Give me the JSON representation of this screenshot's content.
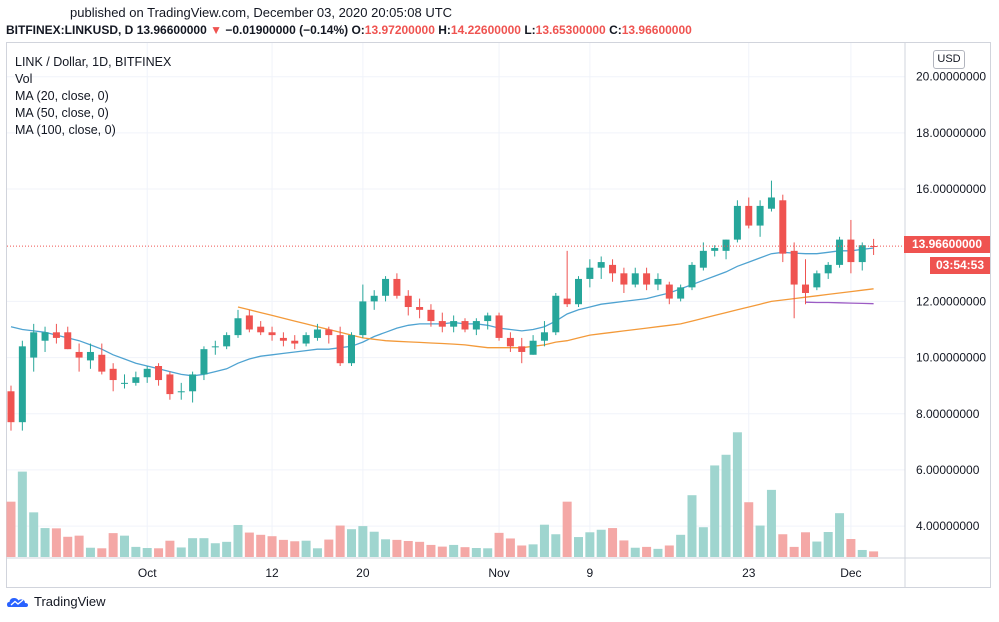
{
  "header": {
    "published": "published on TradingView.com, December 03, 2020 20:05:08 UTC",
    "symbol": "BITFINEX:LINKUSD, D",
    "last": "13.96600000",
    "change_arrow": "▼",
    "change": "−0.01900000 (−0.14%)",
    "o_label": "O:",
    "o_value": "13.97200000",
    "h_label": "H:",
    "h_value": "14.22600000",
    "l_label": "L:",
    "l_value": "13.65300000",
    "c_label": "C:",
    "c_value": "13.96600000"
  },
  "legend": {
    "title": "LINK / Dollar, 1D, BITFINEX",
    "vol": "Vol",
    "ma20": "MA (20, close, 0)",
    "ma50": "MA (50, close, 0)",
    "ma100": "MA (100, close, 0)"
  },
  "currency_button": "USD",
  "price_tag": "13.96600000",
  "countdown_tag": "03:54:53",
  "footer": {
    "brand": "TradingView"
  },
  "colors": {
    "up": "#26a69a",
    "down": "#ef5350",
    "vol_up": "#9fd5cf",
    "vol_down": "#f4a8a6",
    "ma20": "#4fa3d1",
    "ma50": "#f39a3a",
    "ma100": "#9c5cc4",
    "grid": "#f0f3fa"
  },
  "chart_data": {
    "type": "candlestick",
    "title": "LINK / Dollar, 1D, BITFINEX",
    "y_axis": {
      "ticks": [
        "20.00000000",
        "18.00000000",
        "16.00000000",
        "12.00000000",
        "10.00000000",
        "8.00000000",
        "6.00000000",
        "4.00000000"
      ],
      "tick_values": [
        20,
        18,
        16,
        12,
        10,
        8,
        6,
        4
      ],
      "range": [
        2.9,
        21.2
      ]
    },
    "x_axis": {
      "ticks": [
        "Oct",
        "12",
        "20",
        "Nov",
        "9",
        "23",
        "Dec"
      ],
      "tick_day_index": [
        12,
        23,
        31,
        43,
        51,
        65,
        74
      ]
    },
    "candles": [
      {
        "o": 8.8,
        "h": 9.0,
        "l": 7.4,
        "c": 7.7
      },
      {
        "o": 7.7,
        "h": 10.6,
        "l": 7.4,
        "c": 10.4
      },
      {
        "o": 10.0,
        "h": 11.2,
        "l": 9.5,
        "c": 10.9
      },
      {
        "o": 10.6,
        "h": 11.1,
        "l": 10.2,
        "c": 10.9
      },
      {
        "o": 10.9,
        "h": 11.2,
        "l": 10.5,
        "c": 10.7
      },
      {
        "o": 10.9,
        "h": 11.1,
        "l": 10.3,
        "c": 10.3
      },
      {
        "o": 10.2,
        "h": 10.5,
        "l": 9.5,
        "c": 10.0
      },
      {
        "o": 9.9,
        "h": 10.5,
        "l": 9.6,
        "c": 10.2
      },
      {
        "o": 10.1,
        "h": 10.5,
        "l": 9.4,
        "c": 9.5
      },
      {
        "o": 9.6,
        "h": 9.8,
        "l": 8.8,
        "c": 9.2
      },
      {
        "o": 9.1,
        "h": 9.4,
        "l": 8.9,
        "c": 9.1
      },
      {
        "o": 9.1,
        "h": 9.5,
        "l": 9.0,
        "c": 9.3
      },
      {
        "o": 9.3,
        "h": 9.7,
        "l": 9.1,
        "c": 9.6
      },
      {
        "o": 9.7,
        "h": 9.8,
        "l": 9.0,
        "c": 9.2
      },
      {
        "o": 9.4,
        "h": 9.5,
        "l": 8.5,
        "c": 8.7
      },
      {
        "o": 8.8,
        "h": 9.1,
        "l": 8.5,
        "c": 8.8
      },
      {
        "o": 8.8,
        "h": 9.5,
        "l": 8.4,
        "c": 9.4
      },
      {
        "o": 9.4,
        "h": 10.4,
        "l": 9.2,
        "c": 10.3
      },
      {
        "o": 10.4,
        "h": 10.6,
        "l": 10.1,
        "c": 10.4
      },
      {
        "o": 10.4,
        "h": 10.9,
        "l": 10.3,
        "c": 10.8
      },
      {
        "o": 10.8,
        "h": 11.7,
        "l": 10.7,
        "c": 11.4
      },
      {
        "o": 11.5,
        "h": 11.7,
        "l": 10.9,
        "c": 11.0
      },
      {
        "o": 11.1,
        "h": 11.3,
        "l": 10.8,
        "c": 10.9
      },
      {
        "o": 10.9,
        "h": 11.1,
        "l": 10.6,
        "c": 10.8
      },
      {
        "o": 10.7,
        "h": 10.9,
        "l": 10.4,
        "c": 10.6
      },
      {
        "o": 10.6,
        "h": 10.8,
        "l": 10.3,
        "c": 10.5
      },
      {
        "o": 10.5,
        "h": 10.9,
        "l": 10.4,
        "c": 10.8
      },
      {
        "o": 10.7,
        "h": 11.2,
        "l": 10.6,
        "c": 11.0
      },
      {
        "o": 11.0,
        "h": 11.1,
        "l": 10.5,
        "c": 10.8
      },
      {
        "o": 10.8,
        "h": 11.1,
        "l": 9.7,
        "c": 9.8
      },
      {
        "o": 9.8,
        "h": 10.9,
        "l": 9.7,
        "c": 10.8
      },
      {
        "o": 10.8,
        "h": 12.6,
        "l": 10.7,
        "c": 12.0
      },
      {
        "o": 12.0,
        "h": 12.4,
        "l": 11.7,
        "c": 12.2
      },
      {
        "o": 12.2,
        "h": 12.9,
        "l": 12.0,
        "c": 12.8
      },
      {
        "o": 12.8,
        "h": 13.0,
        "l": 12.1,
        "c": 12.2
      },
      {
        "o": 12.2,
        "h": 12.4,
        "l": 11.5,
        "c": 11.8
      },
      {
        "o": 11.8,
        "h": 12.1,
        "l": 11.4,
        "c": 11.7
      },
      {
        "o": 11.7,
        "h": 11.9,
        "l": 11.1,
        "c": 11.3
      },
      {
        "o": 11.3,
        "h": 11.6,
        "l": 10.9,
        "c": 11.1
      },
      {
        "o": 11.1,
        "h": 11.5,
        "l": 10.9,
        "c": 11.3
      },
      {
        "o": 11.3,
        "h": 11.4,
        "l": 10.9,
        "c": 11.0
      },
      {
        "o": 11.0,
        "h": 11.4,
        "l": 10.8,
        "c": 11.3
      },
      {
        "o": 11.3,
        "h": 11.6,
        "l": 11.0,
        "c": 11.5
      },
      {
        "o": 11.5,
        "h": 11.6,
        "l": 10.6,
        "c": 10.7
      },
      {
        "o": 10.7,
        "h": 10.9,
        "l": 10.2,
        "c": 10.4
      },
      {
        "o": 10.4,
        "h": 10.7,
        "l": 9.8,
        "c": 10.2
      },
      {
        "o": 10.1,
        "h": 10.8,
        "l": 10.1,
        "c": 10.6
      },
      {
        "o": 10.6,
        "h": 11.3,
        "l": 10.4,
        "c": 10.9
      },
      {
        "o": 10.9,
        "h": 12.3,
        "l": 10.8,
        "c": 12.2
      },
      {
        "o": 12.1,
        "h": 13.8,
        "l": 11.8,
        "c": 11.9
      },
      {
        "o": 11.9,
        "h": 12.9,
        "l": 11.8,
        "c": 12.8
      },
      {
        "o": 12.8,
        "h": 13.5,
        "l": 12.5,
        "c": 13.2
      },
      {
        "o": 13.2,
        "h": 13.6,
        "l": 12.8,
        "c": 13.4
      },
      {
        "o": 13.3,
        "h": 13.5,
        "l": 12.7,
        "c": 13.0
      },
      {
        "o": 13.0,
        "h": 13.2,
        "l": 12.3,
        "c": 12.6
      },
      {
        "o": 12.6,
        "h": 13.2,
        "l": 12.5,
        "c": 13.0
      },
      {
        "o": 13.0,
        "h": 13.2,
        "l": 12.4,
        "c": 12.6
      },
      {
        "o": 12.6,
        "h": 13.0,
        "l": 12.4,
        "c": 12.8
      },
      {
        "o": 12.6,
        "h": 12.7,
        "l": 11.9,
        "c": 12.1
      },
      {
        "o": 12.1,
        "h": 12.6,
        "l": 12.0,
        "c": 12.5
      },
      {
        "o": 12.5,
        "h": 13.4,
        "l": 12.4,
        "c": 13.3
      },
      {
        "o": 13.2,
        "h": 14.1,
        "l": 13.1,
        "c": 13.8
      },
      {
        "o": 13.8,
        "h": 14.0,
        "l": 13.6,
        "c": 13.9
      },
      {
        "o": 13.8,
        "h": 14.2,
        "l": 13.5,
        "c": 14.2
      },
      {
        "o": 14.2,
        "h": 15.6,
        "l": 14.1,
        "c": 15.4
      },
      {
        "o": 15.4,
        "h": 15.7,
        "l": 14.6,
        "c": 14.7
      },
      {
        "o": 14.7,
        "h": 15.6,
        "l": 14.3,
        "c": 15.4
      },
      {
        "o": 15.3,
        "h": 16.3,
        "l": 15.2,
        "c": 15.7
      },
      {
        "o": 15.6,
        "h": 15.8,
        "l": 13.4,
        "c": 13.7
      },
      {
        "o": 13.8,
        "h": 14.1,
        "l": 11.4,
        "c": 12.6
      },
      {
        "o": 12.6,
        "h": 13.5,
        "l": 11.9,
        "c": 12.3
      },
      {
        "o": 12.5,
        "h": 13.1,
        "l": 12.4,
        "c": 13.0
      },
      {
        "o": 13.0,
        "h": 13.4,
        "l": 12.8,
        "c": 13.3
      },
      {
        "o": 13.3,
        "h": 14.3,
        "l": 13.2,
        "c": 14.2
      },
      {
        "o": 14.2,
        "h": 14.9,
        "l": 13.0,
        "c": 13.4
      },
      {
        "o": 13.4,
        "h": 14.1,
        "l": 13.1,
        "c": 14.0
      },
      {
        "o": 13.972,
        "h": 14.226,
        "l": 13.653,
        "c": 13.966
      }
    ],
    "volume_bar_heights_in_price_units": [
      1.97,
      3.04,
      1.59,
      1.03,
      1.02,
      0.72,
      0.76,
      0.33,
      0.31,
      0.85,
      0.76,
      0.36,
      0.32,
      0.31,
      0.58,
      0.34,
      0.67,
      0.67,
      0.49,
      0.54,
      1.14,
      0.87,
      0.79,
      0.74,
      0.61,
      0.56,
      0.58,
      0.31,
      0.62,
      1.12,
      0.99,
      1.1,
      0.9,
      0.63,
      0.61,
      0.57,
      0.54,
      0.43,
      0.37,
      0.43,
      0.35,
      0.32,
      0.31,
      0.86,
      0.66,
      0.41,
      0.45,
      1.15,
      0.81,
      1.97,
      0.71,
      0.88,
      0.97,
      1.03,
      0.59,
      0.33,
      0.36,
      0.29,
      0.41,
      0.79,
      2.2,
      1.06,
      3.26,
      3.64,
      4.44,
      1.95,
      1.12,
      2.39,
      0.81,
      0.36,
      0.88,
      0.55,
      0.89,
      1.56,
      0.64,
      0.25,
      0.2
    ],
    "series": [
      {
        "name": "MA (20, close, 0)",
        "values": [
          11.1,
          11.0,
          10.95,
          10.9,
          10.8,
          10.7,
          10.6,
          10.45,
          10.3,
          10.1,
          9.95,
          9.8,
          9.7,
          9.6,
          9.5,
          9.4,
          9.35,
          9.4,
          9.5,
          9.6,
          9.8,
          9.95,
          10.05,
          10.1,
          10.15,
          10.2,
          10.25,
          10.3,
          10.3,
          10.35,
          10.4,
          10.55,
          10.75,
          10.9,
          11.05,
          11.15,
          11.2,
          11.2,
          11.2,
          11.25,
          11.2,
          11.2,
          11.15,
          11.05,
          11.0,
          10.95,
          11.0,
          11.1,
          11.3,
          11.55,
          11.7,
          11.8,
          11.9,
          11.95,
          12.0,
          12.05,
          12.1,
          12.2,
          12.3,
          12.45,
          12.6,
          12.75,
          12.9,
          13.05,
          13.25,
          13.4,
          13.55,
          13.7,
          13.75,
          13.72,
          13.7,
          13.7,
          13.75,
          13.8,
          13.8,
          13.85,
          13.9
        ]
      },
      {
        "name": "MA (50, close, 0)",
        "values": [
          null,
          null,
          null,
          null,
          null,
          null,
          null,
          null,
          null,
          null,
          null,
          null,
          null,
          null,
          null,
          null,
          null,
          null,
          null,
          null,
          11.8,
          11.7,
          11.6,
          11.5,
          11.4,
          11.3,
          11.2,
          11.1,
          11.0,
          10.9,
          10.8,
          10.7,
          10.65,
          10.6,
          10.58,
          10.56,
          10.54,
          10.52,
          10.5,
          10.48,
          10.45,
          10.4,
          10.35,
          10.35,
          10.35,
          10.35,
          10.4,
          10.45,
          10.55,
          10.6,
          10.7,
          10.8,
          10.85,
          10.9,
          10.95,
          11.0,
          11.05,
          11.1,
          11.15,
          11.2,
          11.3,
          11.4,
          11.5,
          11.6,
          11.7,
          11.8,
          11.9,
          12.0,
          12.05,
          12.1,
          12.15,
          12.2,
          12.25,
          12.3,
          12.35,
          12.4,
          12.45
        ]
      },
      {
        "name": "MA (100, close, 0)",
        "values": [
          null,
          null,
          null,
          null,
          null,
          null,
          null,
          null,
          null,
          null,
          null,
          null,
          null,
          null,
          null,
          null,
          null,
          null,
          null,
          null,
          null,
          null,
          null,
          null,
          null,
          null,
          null,
          null,
          null,
          null,
          null,
          null,
          null,
          null,
          null,
          null,
          null,
          null,
          null,
          null,
          null,
          null,
          null,
          null,
          null,
          null,
          null,
          null,
          null,
          null,
          null,
          null,
          null,
          null,
          null,
          null,
          null,
          null,
          null,
          null,
          null,
          null,
          null,
          null,
          null,
          null,
          null,
          null,
          null,
          null,
          11.97,
          11.96,
          11.96,
          11.95,
          11.94,
          11.93,
          11.92
        ]
      }
    ]
  }
}
